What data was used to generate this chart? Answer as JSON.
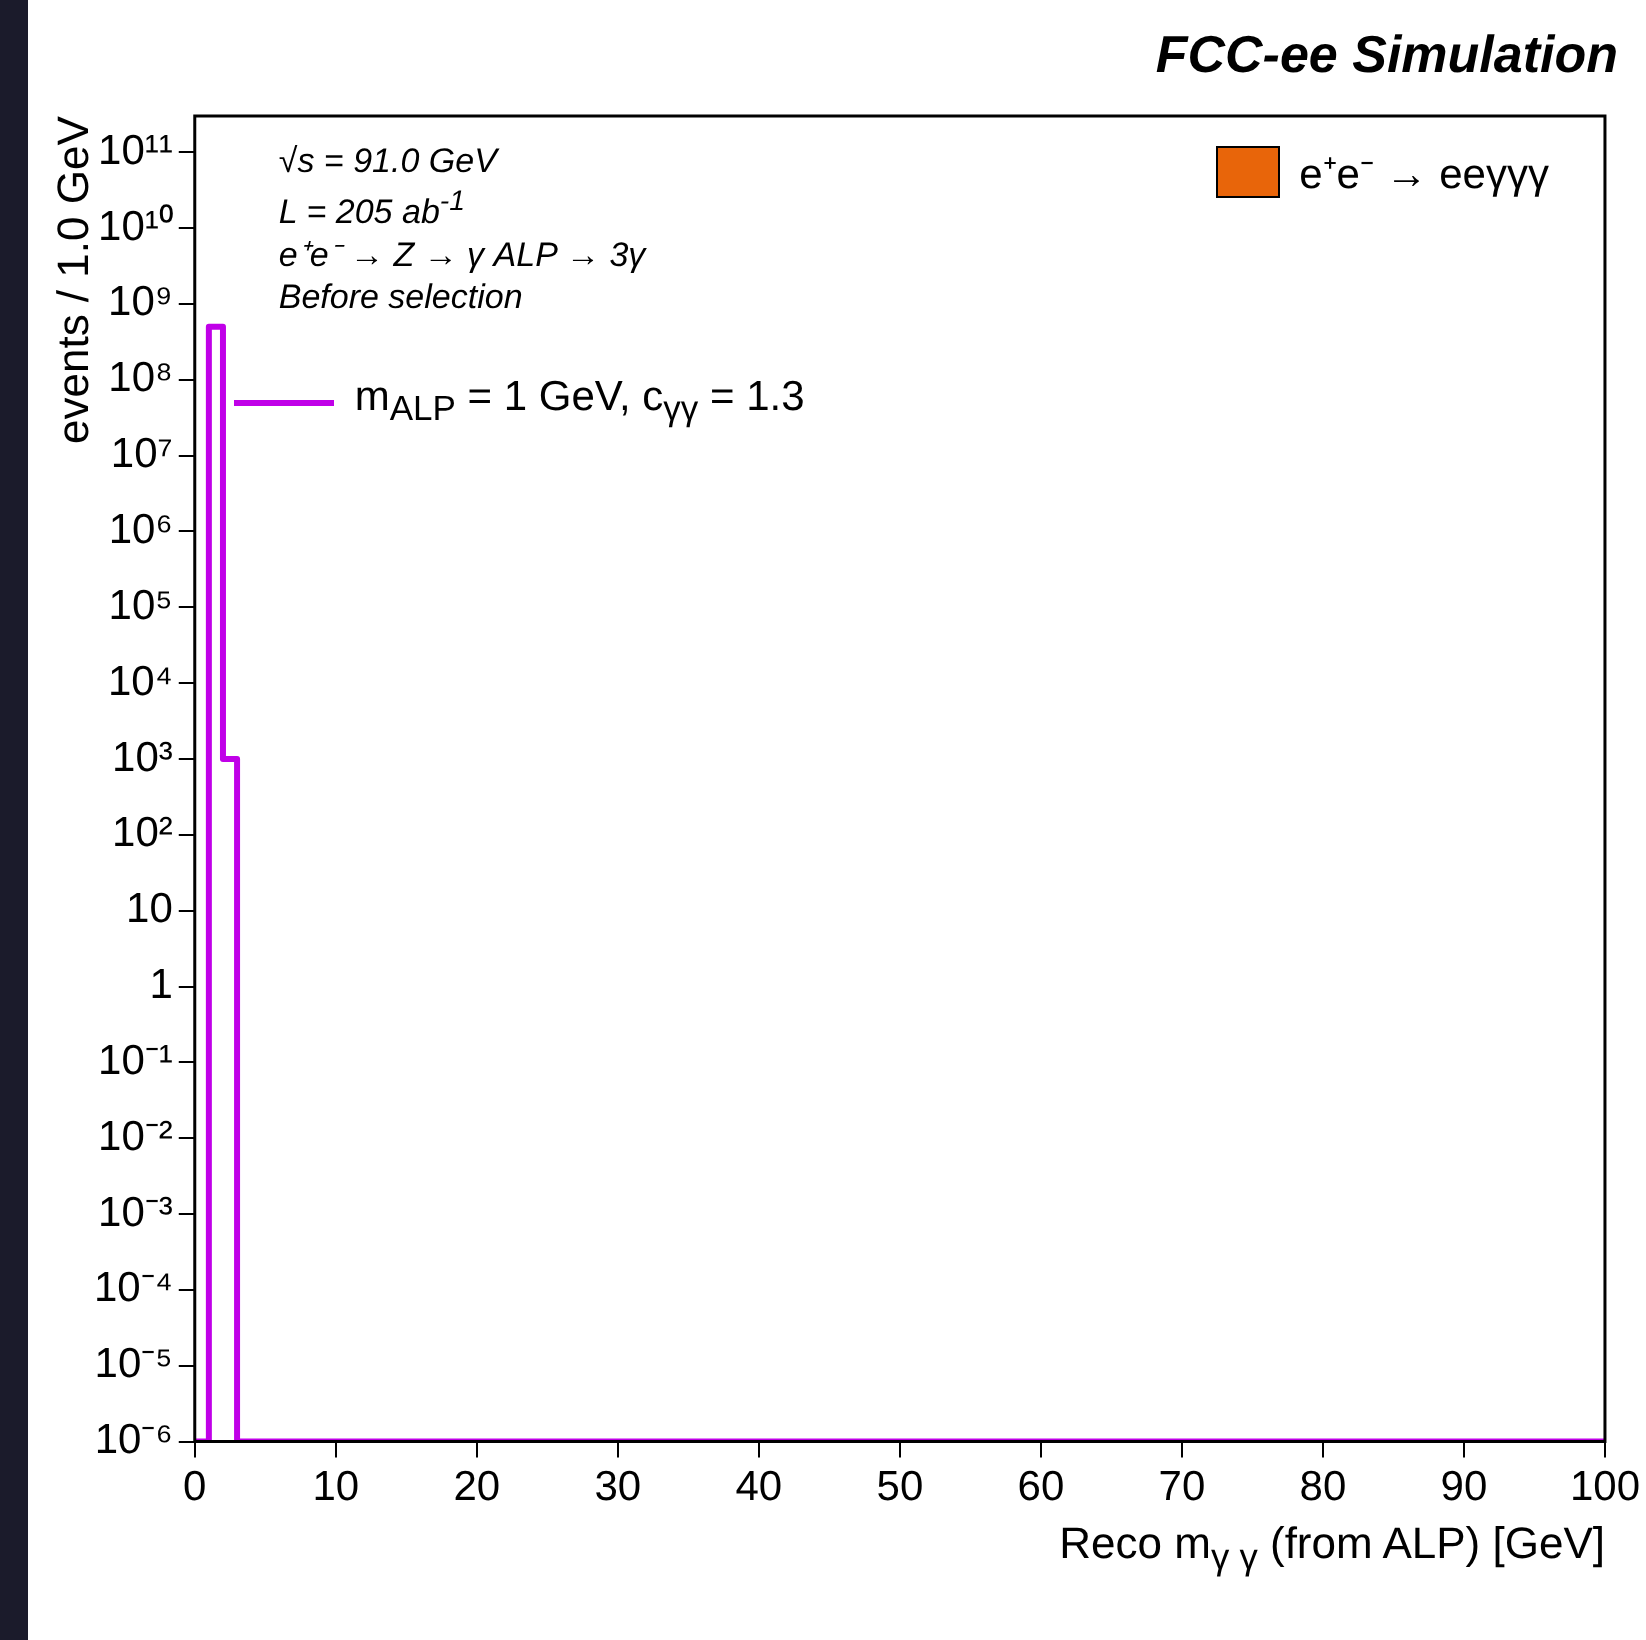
{
  "chart_data": {
    "type": "step",
    "title": "FCC-ee Simulation",
    "xlabel": "Reco m$_{γ γ}$ (from ALP) [GeV]",
    "ylabel": "events / 1.0 GeV",
    "x": [
      0,
      1,
      2,
      3,
      100
    ],
    "series": [
      {
        "name": "e⁺e⁻ → eeγγγ",
        "color": "#e8650a",
        "type": "area",
        "values": [
          null,
          null,
          null,
          null,
          null
        ]
      },
      {
        "name": "m$_{ALP}$ = 1 GeV, c$_{γγ}$ = 1.3",
        "color": "#c000e8",
        "values": [
          1e-06,
          500000000.0,
          1000,
          1e-06,
          1e-06
        ]
      }
    ],
    "xlim": [
      0,
      100
    ],
    "xticks": [
      0,
      10,
      20,
      30,
      40,
      50,
      60,
      70,
      80,
      90,
      100
    ],
    "ylim": [
      1e-06,
      300000000000.0
    ],
    "yticks": [
      {
        "value": 1e-06,
        "label": "10⁻⁶"
      },
      {
        "value": 1e-05,
        "label": "10⁻⁵"
      },
      {
        "value": 0.0001,
        "label": "10⁻⁴"
      },
      {
        "value": 0.001,
        "label": "10⁻³"
      },
      {
        "value": 0.01,
        "label": "10⁻²"
      },
      {
        "value": 0.1,
        "label": "10⁻¹"
      },
      1,
      10,
      {
        "value": 100,
        "label": "10²"
      },
      {
        "value": 1000,
        "label": "10³"
      },
      {
        "value": 10000.0,
        "label": "10⁴"
      },
      {
        "value": 100000.0,
        "label": "10⁵"
      },
      {
        "value": 1000000.0,
        "label": "10⁶"
      },
      {
        "value": 10000000.0,
        "label": "10⁷"
      },
      {
        "value": 100000000.0,
        "label": "10⁸"
      },
      {
        "value": 1000000000.0,
        "label": "10⁹"
      },
      {
        "value": 10000000000.0,
        "label": "10¹⁰"
      },
      {
        "value": 100000000000.0,
        "label": "10¹¹"
      }
    ],
    "log": "y",
    "grid": false,
    "legend": "top right",
    "annotations": [
      "√s = 91.0 GeV",
      "L = 205 ab$^{-1}$",
      "e⁺e⁻ → Z → γ ALP → 3γ",
      "Before selection"
    ]
  }
}
